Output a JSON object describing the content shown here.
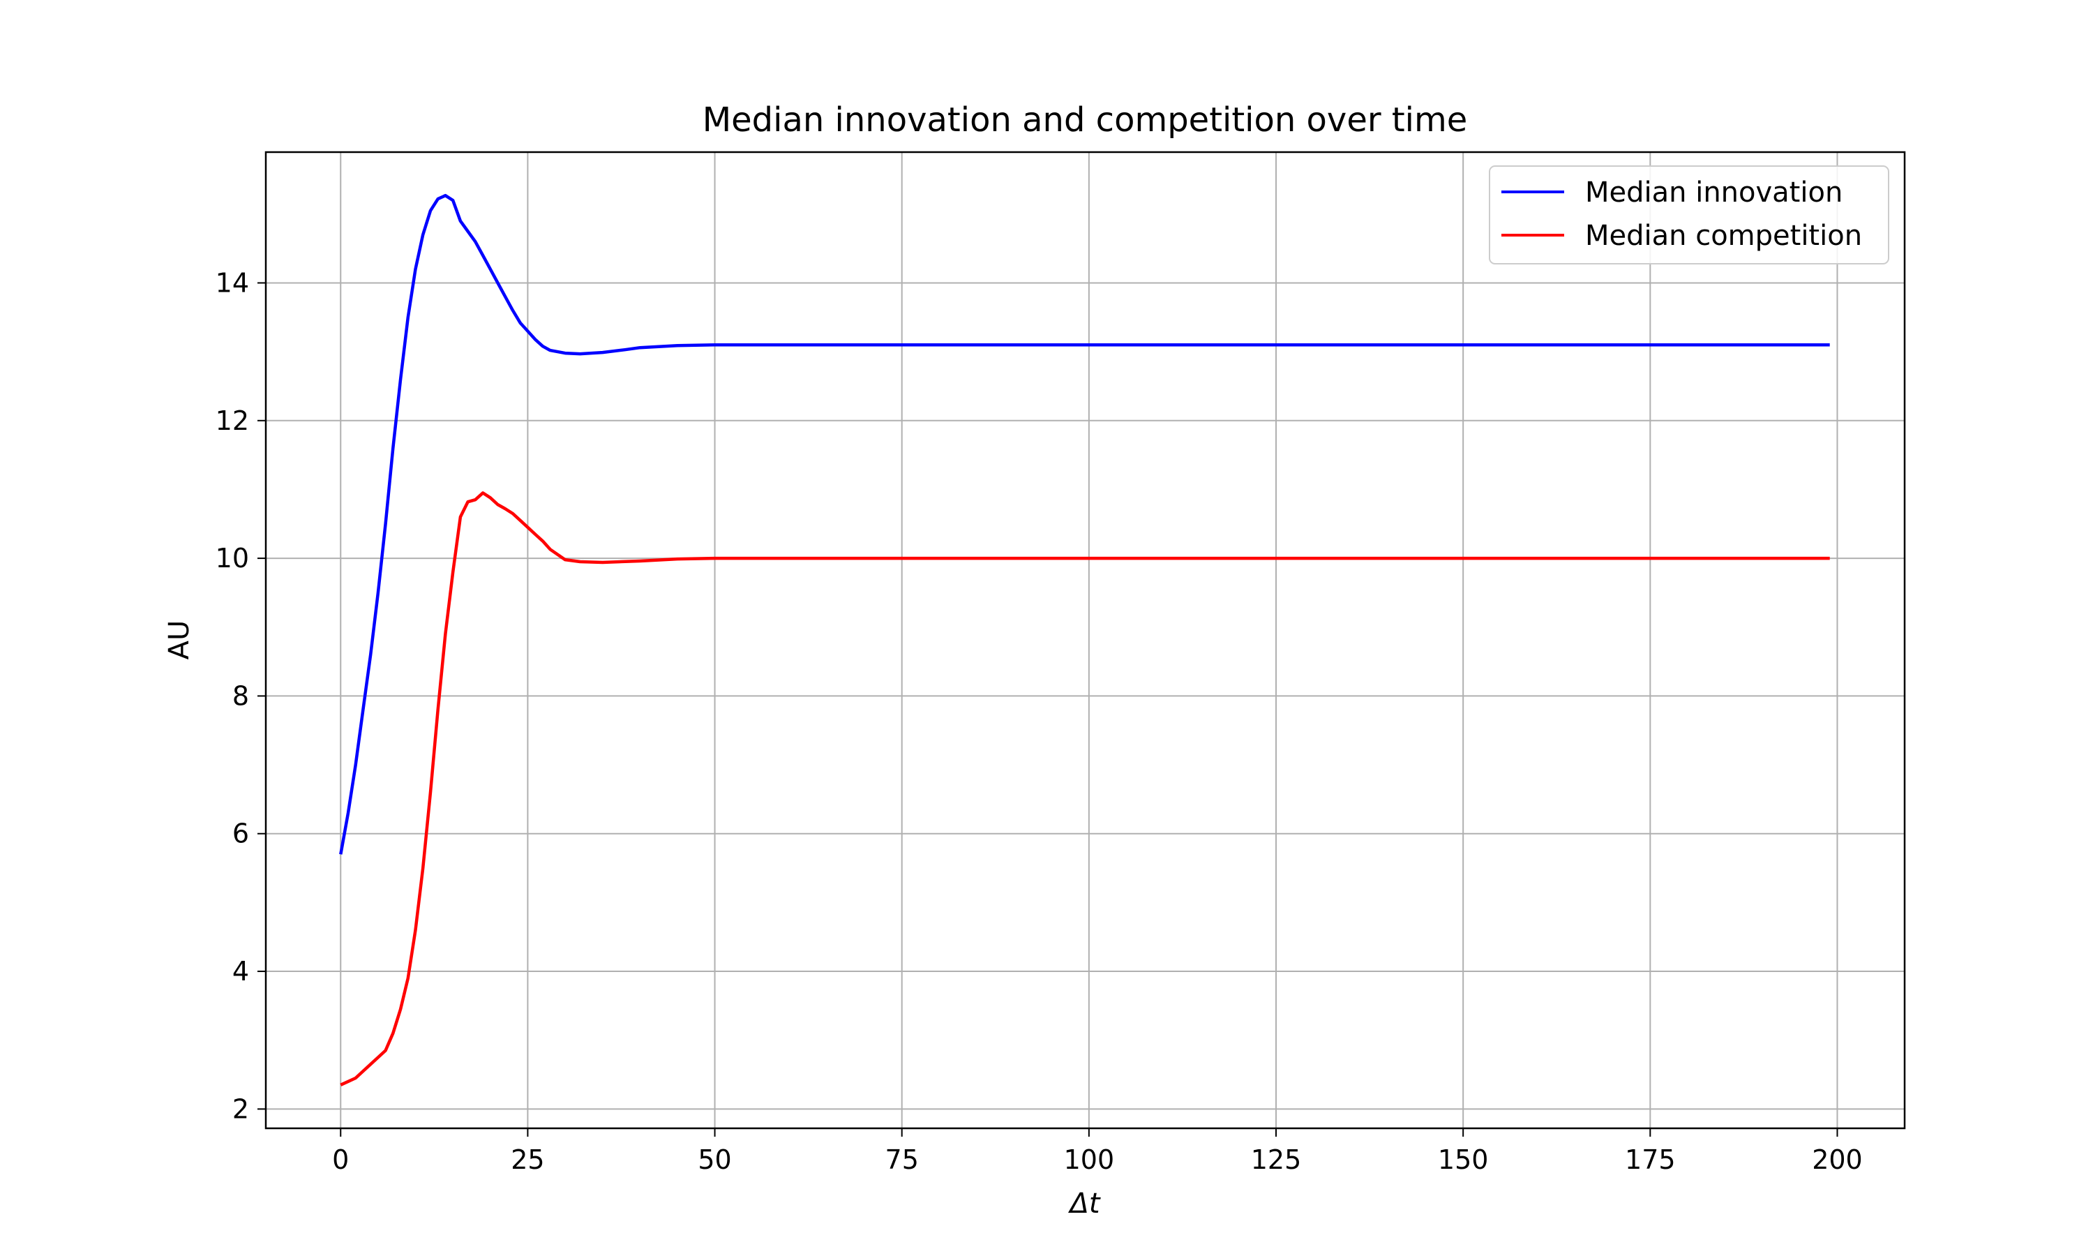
{
  "chart_data": {
    "type": "line",
    "title": "Median innovation and competition over time",
    "xlabel": "Δt",
    "ylabel": "AU",
    "xlim": [
      -10,
      209
    ],
    "ylim": [
      1.72,
      15.9
    ],
    "xticks": [
      0,
      25,
      50,
      75,
      100,
      125,
      150,
      175,
      200
    ],
    "yticks": [
      2,
      4,
      6,
      8,
      10,
      12,
      14
    ],
    "grid": true,
    "legend_position": "top-right",
    "series": [
      {
        "name": "Median innovation",
        "color": "#0000ff",
        "points": [
          [
            0,
            5.7
          ],
          [
            1,
            6.3
          ],
          [
            2,
            7.0
          ],
          [
            3,
            7.8
          ],
          [
            4,
            8.6
          ],
          [
            5,
            9.5
          ],
          [
            6,
            10.5
          ],
          [
            7,
            11.6
          ],
          [
            8,
            12.6
          ],
          [
            9,
            13.5
          ],
          [
            10,
            14.2
          ],
          [
            11,
            14.7
          ],
          [
            12,
            15.05
          ],
          [
            13,
            15.22
          ],
          [
            14,
            15.27
          ],
          [
            15,
            15.2
          ],
          [
            16,
            14.9
          ],
          [
            17,
            14.75
          ],
          [
            18,
            14.6
          ],
          [
            19,
            14.4
          ],
          [
            20,
            14.2
          ],
          [
            21,
            14.0
          ],
          [
            22,
            13.8
          ],
          [
            23,
            13.6
          ],
          [
            24,
            13.42
          ],
          [
            25,
            13.3
          ],
          [
            26,
            13.18
          ],
          [
            27,
            13.08
          ],
          [
            28,
            13.02
          ],
          [
            30,
            12.98
          ],
          [
            32,
            12.97
          ],
          [
            35,
            12.99
          ],
          [
            38,
            13.03
          ],
          [
            40,
            13.06
          ],
          [
            45,
            13.09
          ],
          [
            50,
            13.1
          ],
          [
            60,
            13.1
          ],
          [
            80,
            13.1
          ],
          [
            100,
            13.1
          ],
          [
            125,
            13.1
          ],
          [
            150,
            13.1
          ],
          [
            175,
            13.1
          ],
          [
            199,
            13.1
          ]
        ]
      },
      {
        "name": "Median competition",
        "color": "#ff0000",
        "points": [
          [
            0,
            2.35
          ],
          [
            1,
            2.4
          ],
          [
            2,
            2.45
          ],
          [
            3,
            2.55
          ],
          [
            4,
            2.65
          ],
          [
            5,
            2.75
          ],
          [
            6,
            2.85
          ],
          [
            7,
            3.1
          ],
          [
            8,
            3.45
          ],
          [
            9,
            3.9
          ],
          [
            10,
            4.6
          ],
          [
            11,
            5.5
          ],
          [
            12,
            6.6
          ],
          [
            13,
            7.8
          ],
          [
            14,
            8.9
          ],
          [
            15,
            9.8
          ],
          [
            16,
            10.6
          ],
          [
            17,
            10.82
          ],
          [
            18,
            10.85
          ],
          [
            19,
            10.95
          ],
          [
            20,
            10.88
          ],
          [
            21,
            10.78
          ],
          [
            22,
            10.72
          ],
          [
            23,
            10.65
          ],
          [
            24,
            10.55
          ],
          [
            25,
            10.45
          ],
          [
            26,
            10.35
          ],
          [
            27,
            10.25
          ],
          [
            28,
            10.13
          ],
          [
            30,
            9.98
          ],
          [
            32,
            9.95
          ],
          [
            35,
            9.94
          ],
          [
            40,
            9.96
          ],
          [
            45,
            9.99
          ],
          [
            50,
            10.0
          ],
          [
            60,
            10.0
          ],
          [
            80,
            10.0
          ],
          [
            100,
            10.0
          ],
          [
            125,
            10.0
          ],
          [
            150,
            10.0
          ],
          [
            175,
            10.0
          ],
          [
            199,
            10.0
          ]
        ]
      }
    ]
  }
}
